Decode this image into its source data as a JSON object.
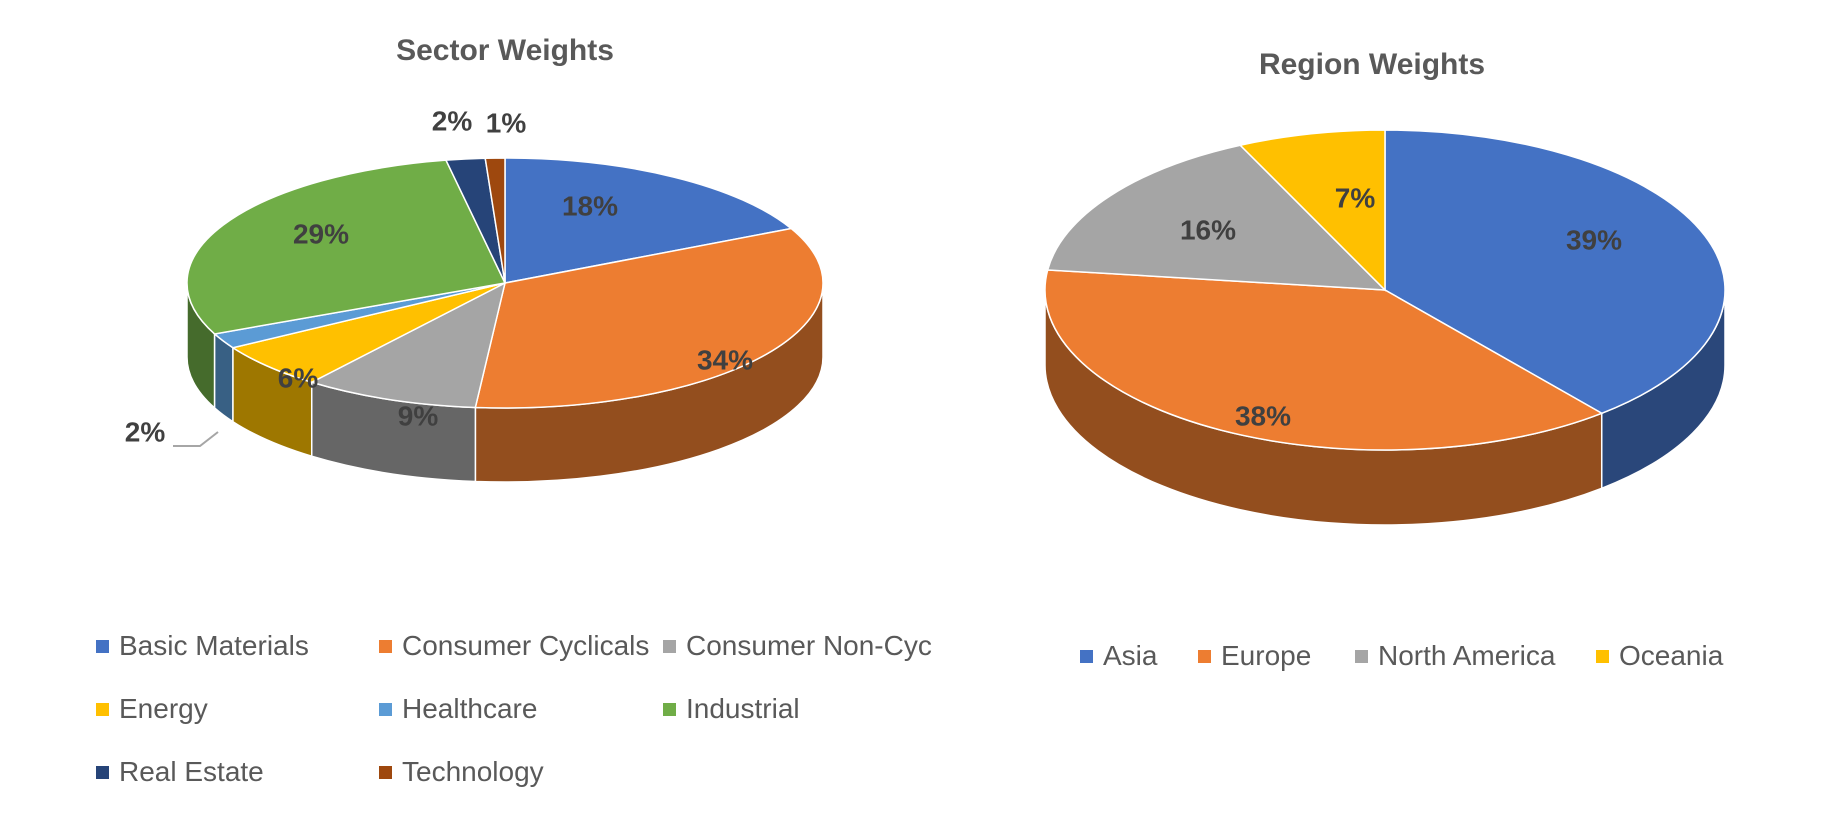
{
  "chart_data": [
    {
      "type": "pie",
      "title": "Sector Weights",
      "categories": [
        "Basic Materials",
        "Consumer Cyclicals",
        "Consumer Non-Cyc",
        "Energy",
        "Healthcare",
        "Industrial",
        "Real Estate",
        "Technology"
      ],
      "values": [
        18,
        34,
        9,
        6,
        2,
        29,
        2,
        1
      ],
      "data_labels": [
        "18%",
        "34%",
        "9%",
        "6%",
        "2%",
        "29%",
        "2%",
        "1%"
      ],
      "colors": [
        "#4472C4",
        "#ED7D31",
        "#A5A5A5",
        "#FFC000",
        "#5B9BD5",
        "#70AD47",
        "#264478",
        "#9E480E"
      ],
      "style": "3d-pie",
      "legend_position": "bottom"
    },
    {
      "type": "pie",
      "title": "Region Weights",
      "categories": [
        "Asia",
        "Europe",
        "North America",
        "Oceania"
      ],
      "values": [
        39,
        38,
        16,
        7
      ],
      "data_labels": [
        "39%",
        "38%",
        "16%",
        "7%"
      ],
      "colors": [
        "#4472C4",
        "#ED7D31",
        "#A5A5A5",
        "#FFC000"
      ],
      "style": "3d-pie",
      "legend_position": "bottom"
    }
  ]
}
